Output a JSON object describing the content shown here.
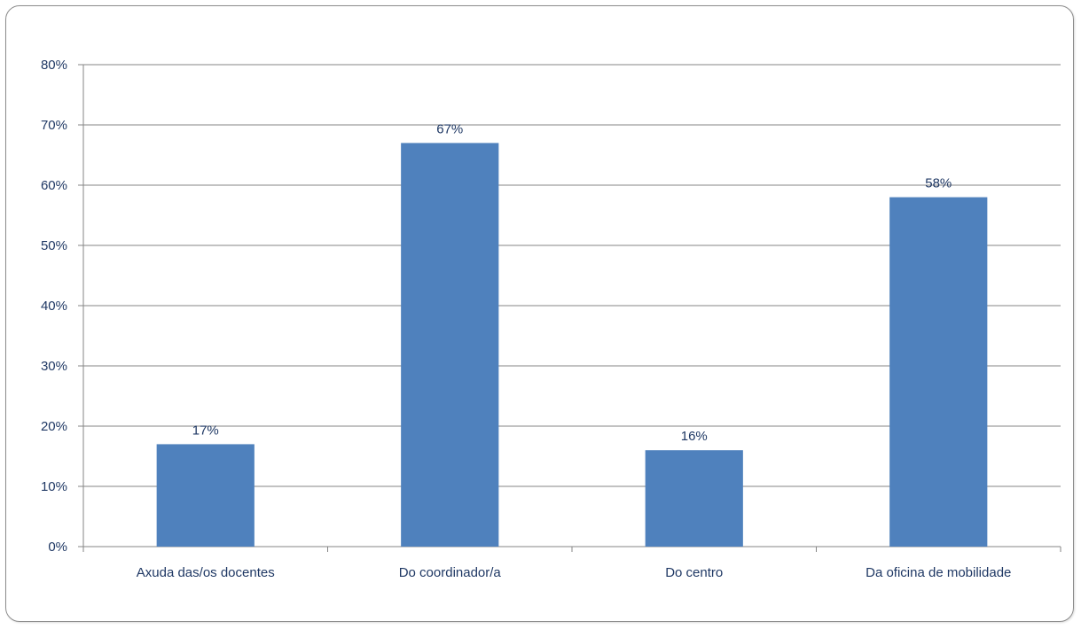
{
  "chart_data": {
    "type": "bar",
    "categories": [
      "Axuda das/os docentes",
      "Do coordinador/a",
      "Do centro",
      "Da oficina de mobilidade"
    ],
    "values": [
      17,
      67,
      16,
      58
    ],
    "data_labels": [
      "17%",
      "67%",
      "16%",
      "58%"
    ],
    "ylim": [
      0,
      80
    ],
    "yticks": [
      0,
      10,
      20,
      30,
      40,
      50,
      60,
      70,
      80
    ],
    "ytick_labels": [
      "0%",
      "10%",
      "20%",
      "30%",
      "40%",
      "50%",
      "60%",
      "70%",
      "80%"
    ],
    "grid": true,
    "legend": "none",
    "bar_color": "#4f81bd",
    "grid_color": "#868686",
    "text_color": "#1f3864"
  }
}
